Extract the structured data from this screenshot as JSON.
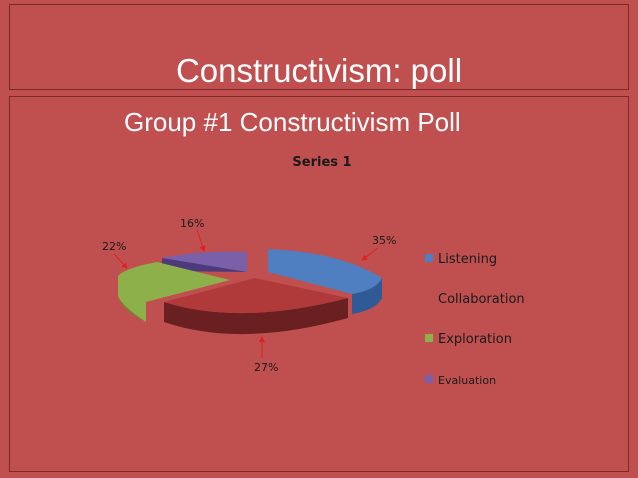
{
  "slide": {
    "title": "Constructivism: poll",
    "heading": "Group #1 Constructivism Poll"
  },
  "colors": {
    "background": "#c05050",
    "Listening": "#4f7fc0",
    "Collaboration": "#b03a3a",
    "Exploration": "#8eb04a",
    "Evaluation": "#7a60a8",
    "arrow": "#e02020"
  },
  "chart_data": {
    "type": "pie",
    "style": "3d-exploded",
    "title": "Series 1",
    "labels": [
      "Listening",
      "Collaboration",
      "Exploration",
      "Evaluation"
    ],
    "values": [
      35,
      27,
      22,
      16
    ],
    "data_labels": [
      "35%",
      "27%",
      "22%",
      "16%"
    ],
    "legend_position": "right"
  }
}
